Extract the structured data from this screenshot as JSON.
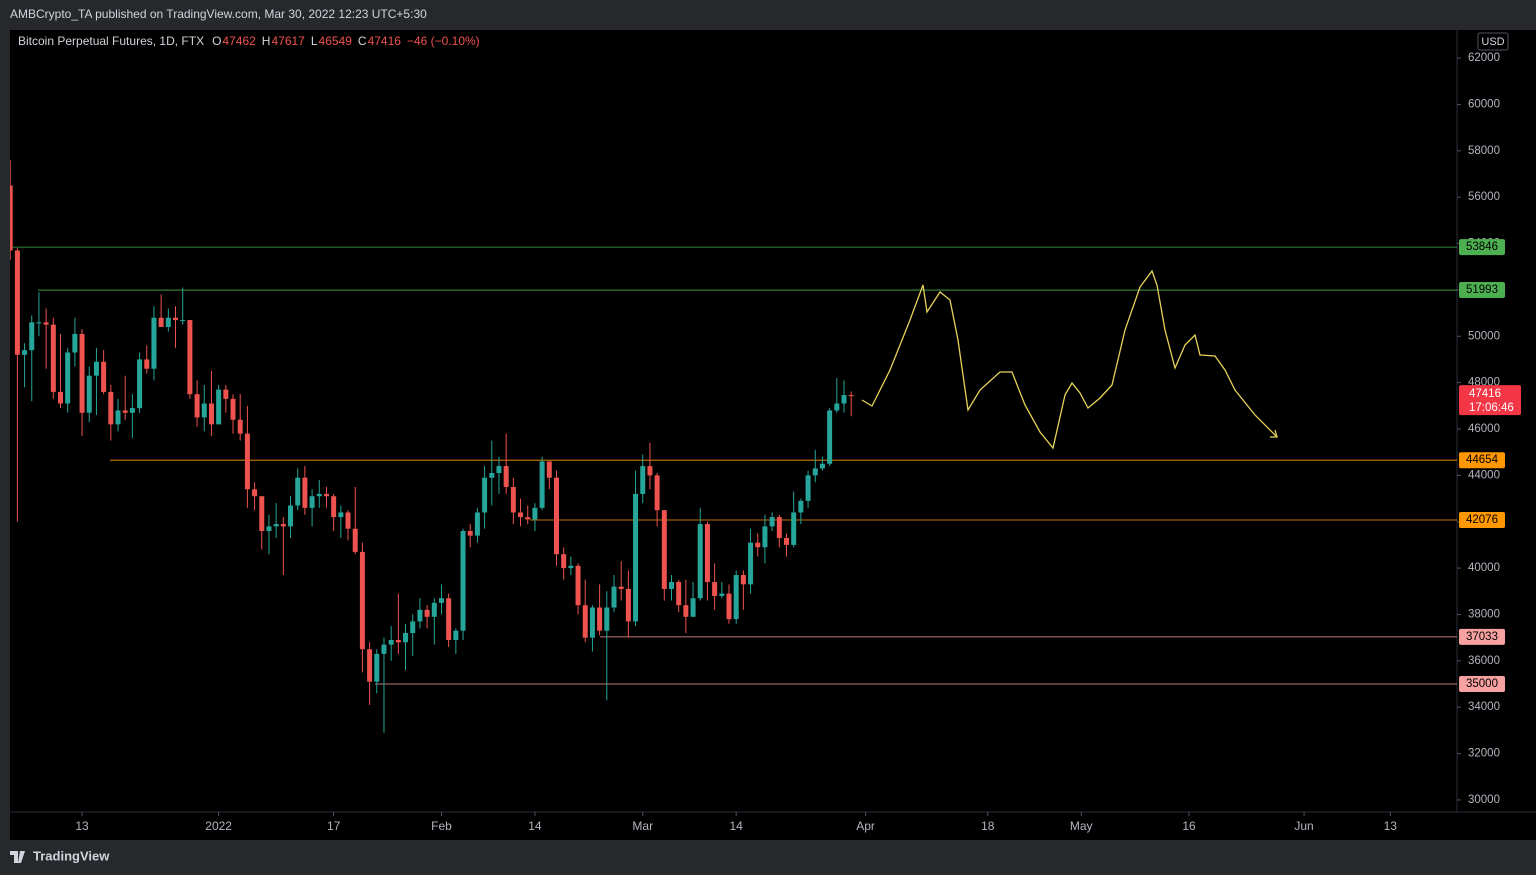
{
  "header": {
    "text": "AMBCrypto_TA published on TradingView.com, Mar 30, 2022 12:23 UTC+5:30"
  },
  "chart_data": {
    "type": "candlestick",
    "title": "Bitcoin Perpetual Futures, 1D, FTX",
    "legend": [
      {
        "key": "O",
        "value": 47462
      },
      {
        "key": "H",
        "value": 47617
      },
      {
        "key": "L",
        "value": 46549
      },
      {
        "key": "C",
        "value": 47416
      }
    ],
    "change": "−46 (−0.10%)",
    "currency": "USD",
    "x": [
      "2021-12-03",
      "2021-12-04",
      "2021-12-05",
      "2021-12-06",
      "2021-12-07",
      "2021-12-08",
      "2021-12-09",
      "2021-12-10",
      "2021-12-11",
      "2021-12-12",
      "2021-12-13",
      "2021-12-14",
      "2021-12-15",
      "2021-12-16",
      "2021-12-17",
      "2021-12-18",
      "2021-12-19",
      "2021-12-20",
      "2021-12-21",
      "2021-12-22",
      "2021-12-23",
      "2021-12-24",
      "2021-12-25",
      "2021-12-26",
      "2021-12-27",
      "2021-12-28",
      "2021-12-29",
      "2021-12-30",
      "2021-12-31",
      "2022-01-01",
      "2022-01-02",
      "2022-01-03",
      "2022-01-04",
      "2022-01-05",
      "2022-01-06",
      "2022-01-07",
      "2022-01-08",
      "2022-01-09",
      "2022-01-10",
      "2022-01-11",
      "2022-01-12",
      "2022-01-13",
      "2022-01-14",
      "2022-01-15",
      "2022-01-16",
      "2022-01-17",
      "2022-01-18",
      "2022-01-19",
      "2022-01-20",
      "2022-01-21",
      "2022-01-22",
      "2022-01-23",
      "2022-01-24",
      "2022-01-25",
      "2022-01-26",
      "2022-01-27",
      "2022-01-28",
      "2022-01-29",
      "2022-01-30",
      "2022-01-31",
      "2022-02-01",
      "2022-02-02",
      "2022-02-03",
      "2022-02-04",
      "2022-02-05",
      "2022-02-06",
      "2022-02-07",
      "2022-02-08",
      "2022-02-09",
      "2022-02-10",
      "2022-02-11",
      "2022-02-12",
      "2022-02-13",
      "2022-02-14",
      "2022-02-15",
      "2022-02-16",
      "2022-02-17",
      "2022-02-18",
      "2022-02-19",
      "2022-02-20",
      "2022-02-21",
      "2022-02-22",
      "2022-02-23",
      "2022-02-24",
      "2022-02-25",
      "2022-02-26",
      "2022-02-27",
      "2022-02-28",
      "2022-03-01",
      "2022-03-02",
      "2022-03-03",
      "2022-03-04",
      "2022-03-05",
      "2022-03-06",
      "2022-03-07",
      "2022-03-08",
      "2022-03-09",
      "2022-03-10",
      "2022-03-11",
      "2022-03-12",
      "2022-03-13",
      "2022-03-14",
      "2022-03-15",
      "2022-03-16",
      "2022-03-17",
      "2022-03-18",
      "2022-03-19",
      "2022-03-20",
      "2022-03-21",
      "2022-03-22",
      "2022-03-23",
      "2022-03-24",
      "2022-03-25",
      "2022-03-26",
      "2022-03-27",
      "2022-03-28",
      "2022-03-29",
      "2022-03-30"
    ],
    "open": [
      56500,
      53700,
      49200,
      49400,
      50600,
      50600,
      50500,
      47600,
      47100,
      49300,
      50100,
      46700,
      48300,
      48900,
      47600,
      46200,
      46800,
      46700,
      46900,
      49000,
      48600,
      50800,
      50400,
      50800,
      50700,
      50700,
      47500,
      46500,
      47100,
      46200,
      47700,
      47300,
      46400,
      45800,
      43400,
      43100,
      41600,
      41800,
      41900,
      41800,
      42700,
      43900,
      42600,
      43100,
      43200,
      43100,
      42200,
      42400,
      41700,
      40700,
      36500,
      35100,
      36300,
      36700,
      36900,
      36800,
      37200,
      37700,
      38200,
      37900,
      38500,
      38700,
      36900,
      37300,
      41600,
      41400,
      42400,
      43900,
      44100,
      44400,
      43500,
      42400,
      42200,
      42100,
      42600,
      44600,
      43900,
      40600,
      40000,
      40100,
      38400,
      37000,
      38300,
      37300,
      38300,
      39200,
      39100,
      37700,
      43200,
      44400,
      44000,
      42500,
      39100,
      39400,
      38400,
      37900,
      38700,
      41900,
      39400,
      38800,
      38900,
      37800,
      39700,
      39300,
      41100,
      40900,
      41800,
      42200,
      41300,
      41000,
      42400,
      42900,
      44000,
      44300,
      44500,
      46800,
      47100,
      47462
    ],
    "high": [
      57600,
      53800,
      49700,
      50900,
      51900,
      51200,
      50800,
      50100,
      49500,
      50800,
      50300,
      48700,
      49500,
      49400,
      47900,
      47300,
      48300,
      47500,
      49300,
      49600,
      51300,
      51800,
      51200,
      51300,
      52100,
      50700,
      48100,
      47900,
      48500,
      47900,
      47900,
      47500,
      47500,
      47000,
      43700,
      43100,
      42300,
      42800,
      42200,
      43100,
      44300,
      44400,
      43400,
      43800,
      43500,
      43200,
      42700,
      42500,
      43500,
      41100,
      36800,
      36500,
      37000,
      37500,
      38900,
      37600,
      38000,
      38700,
      38400,
      38700,
      39300,
      38900,
      37400,
      41700,
      41900,
      42600,
      44400,
      45500,
      44800,
      45800,
      43900,
      43000,
      42700,
      42800,
      44800,
      44600,
      44200,
      40900,
      40500,
      40200,
      39500,
      38400,
      39300,
      39000,
      39700,
      40300,
      39900,
      44200,
      44900,
      45400,
      44100,
      42500,
      39700,
      39500,
      39500,
      39400,
      42600,
      42000,
      40200,
      39400,
      39300,
      39900,
      39900,
      41700,
      41500,
      42300,
      42400,
      42300,
      41500,
      43300,
      43000,
      44200,
      45100,
      44800,
      46900,
      48200,
      48100,
      47617
    ],
    "low": [
      53300,
      42000,
      47800,
      47200,
      50000,
      48600,
      47300,
      46900,
      46700,
      48700,
      45700,
      46300,
      46600,
      47500,
      45500,
      45900,
      46400,
      45600,
      46700,
      48400,
      48100,
      50400,
      50200,
      49500,
      50500,
      47300,
      46100,
      45900,
      45700,
      46200,
      46700,
      45800,
      45500,
      42600,
      42500,
      40800,
      40600,
      41300,
      39700,
      41300,
      42500,
      42300,
      41800,
      42600,
      42600,
      41600,
      41300,
      41200,
      40600,
      35500,
      34100,
      34600,
      32900,
      36000,
      36300,
      35600,
      36200,
      37400,
      37400,
      36700,
      38000,
      36600,
      36300,
      36900,
      40900,
      41100,
      41700,
      42700,
      43200,
      43200,
      41900,
      41800,
      41900,
      41600,
      42500,
      43400,
      40100,
      39500,
      39700,
      38000,
      36800,
      36400,
      37100,
      34300,
      38100,
      38600,
      37000,
      37500,
      42800,
      43400,
      41800,
      38600,
      38600,
      38100,
      37200,
      37900,
      38600,
      38600,
      38200,
      38700,
      37600,
      37600,
      38200,
      38900,
      40500,
      40200,
      41600,
      40900,
      40500,
      40900,
      41900,
      42600,
      43700,
      44200,
      44400,
      46700,
      46700,
      46549
    ],
    "close": [
      53700,
      49200,
      49400,
      50600,
      50600,
      50500,
      47600,
      47100,
      49300,
      50100,
      46700,
      48300,
      48900,
      47600,
      46200,
      46800,
      46700,
      46900,
      49000,
      48600,
      50800,
      50400,
      50800,
      50700,
      50700,
      47500,
      46500,
      47100,
      46200,
      47700,
      47300,
      46400,
      45800,
      43400,
      43100,
      41600,
      41800,
      41900,
      41800,
      42700,
      43900,
      42600,
      43100,
      43200,
      43100,
      42200,
      42400,
      41700,
      40700,
      36500,
      35100,
      36300,
      36700,
      36900,
      36800,
      37200,
      37700,
      38200,
      37900,
      38500,
      38700,
      36900,
      37300,
      41600,
      41400,
      42400,
      43900,
      44100,
      44400,
      43500,
      42400,
      42200,
      42100,
      42600,
      44600,
      43900,
      40600,
      40000,
      40100,
      38400,
      37000,
      38300,
      37300,
      38300,
      39200,
      39100,
      37700,
      43200,
      44400,
      44000,
      42500,
      39100,
      39400,
      38400,
      37900,
      38700,
      41900,
      39400,
      38800,
      38900,
      37800,
      39700,
      39300,
      41100,
      40900,
      41800,
      42200,
      41300,
      41000,
      42400,
      42900,
      44000,
      44300,
      44500,
      46800,
      47100,
      47462,
      47416
    ],
    "up_color": "#26a69a",
    "down_color": "#ef5350",
    "xlim": [
      "2021-12-02",
      "2022-06-22"
    ],
    "xticks": [
      {
        "value": "2021-12-13",
        "label": "13"
      },
      {
        "value": "2022-01-01",
        "label": "2022"
      },
      {
        "value": "2022-01-17",
        "label": "17"
      },
      {
        "value": "2022-02-01",
        "label": "Feb"
      },
      {
        "value": "2022-02-14",
        "label": "14"
      },
      {
        "value": "2022-03-01",
        "label": "Mar"
      },
      {
        "value": "2022-03-14",
        "label": "14"
      },
      {
        "value": "2022-04-01",
        "label": "Apr"
      },
      {
        "value": "2022-04-18",
        "label": "18"
      },
      {
        "value": "2022-05-01",
        "label": "May"
      },
      {
        "value": "2022-05-16",
        "label": "16"
      },
      {
        "value": "2022-06-01",
        "label": "Jun"
      },
      {
        "value": "2022-06-13",
        "label": "13"
      }
    ],
    "ylim": [
      29480,
      63210
    ],
    "yticks": [
      30000,
      32000,
      34000,
      36000,
      38000,
      40000,
      42000,
      44000,
      46000,
      48000,
      50000,
      52000,
      54000,
      56000,
      58000,
      60000,
      62000
    ],
    "levels": [
      {
        "value": 53846,
        "color": "#4caf50"
      },
      {
        "value": 51993,
        "color": "#4caf50"
      },
      {
        "value": 44654,
        "color": "#ff9800"
      },
      {
        "value": 42076,
        "color": "#ff9800"
      },
      {
        "value": 37033,
        "color": "#f7a1a1"
      },
      {
        "value": 35000,
        "color": "#f7a1a1"
      }
    ],
    "last_price": {
      "value": 47416,
      "countdown": "17:06:46",
      "color": "#f23645"
    }
  },
  "footer": {
    "brand": "TradingView"
  }
}
